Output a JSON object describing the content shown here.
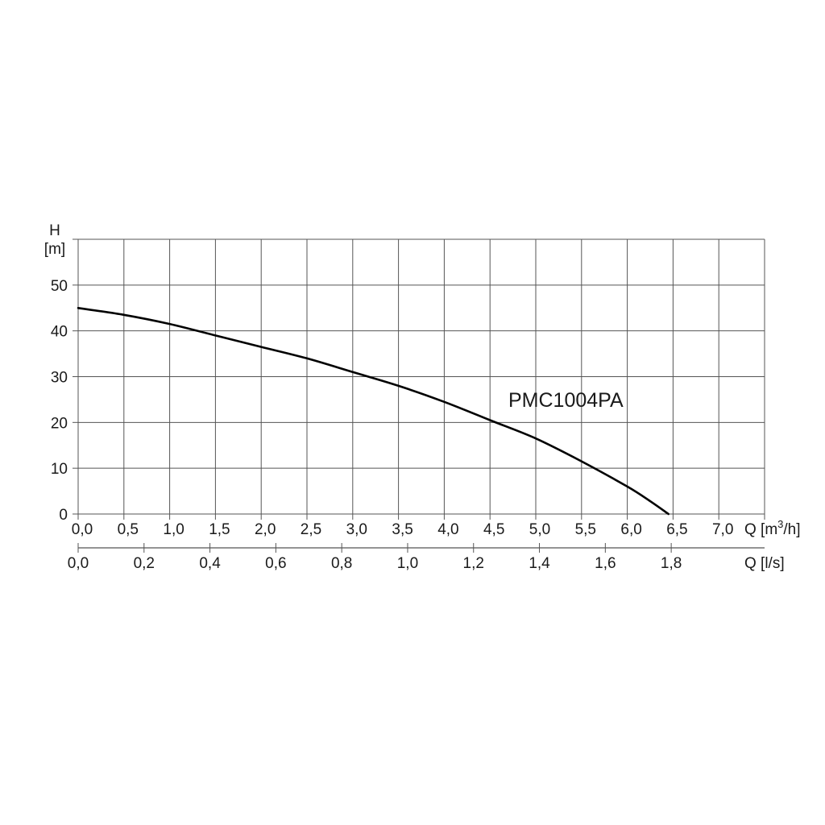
{
  "chart_data": {
    "type": "line",
    "title": "",
    "y_axis": {
      "label_line1": "H",
      "label_line2": "[m]",
      "ylim": [
        0,
        60
      ],
      "ticks": [
        "0",
        "10",
        "20",
        "30",
        "40",
        "50"
      ],
      "tick_values": [
        0,
        10,
        20,
        30,
        40,
        50
      ]
    },
    "x_axis_primary": {
      "label_prefix": "Q [m",
      "label_sup": "3",
      "label_suffix": "/h]",
      "xlim": [
        0,
        7.5
      ],
      "ticks": [
        "0,0",
        "0,5",
        "1,0",
        "1,5",
        "2,0",
        "2,5",
        "3,0",
        "3,5",
        "4,0",
        "4,5",
        "5,0",
        "5,5",
        "6,0",
        "6,5",
        "7,0"
      ],
      "tick_values": [
        0,
        0.5,
        1.0,
        1.5,
        2.0,
        2.5,
        3.0,
        3.5,
        4.0,
        4.5,
        5.0,
        5.5,
        6.0,
        6.5,
        7.0
      ]
    },
    "x_axis_secondary": {
      "label": "Q [l/s]",
      "ticks": [
        "0,0",
        "0,2",
        "0,4",
        "0,6",
        "0,8",
        "1,0",
        "1,2",
        "1,4",
        "1,6",
        "1,8"
      ],
      "tick_values": [
        0,
        0.2,
        0.4,
        0.6,
        0.8,
        1.0,
        1.2,
        1.4,
        1.6,
        1.8
      ]
    },
    "grid": true,
    "series": [
      {
        "name": "PMC1004PA",
        "color": "#000000",
        "points": [
          [
            0.0,
            45.0
          ],
          [
            0.5,
            43.5
          ],
          [
            1.0,
            41.5
          ],
          [
            1.5,
            39.0
          ],
          [
            2.0,
            36.5
          ],
          [
            2.5,
            34.0
          ],
          [
            3.0,
            31.0
          ],
          [
            3.5,
            28.0
          ],
          [
            4.0,
            24.5
          ],
          [
            4.5,
            20.5
          ],
          [
            5.0,
            16.5
          ],
          [
            5.5,
            11.5
          ],
          [
            6.0,
            6.0
          ],
          [
            6.25,
            2.8
          ],
          [
            6.45,
            0.0
          ]
        ]
      }
    ]
  }
}
